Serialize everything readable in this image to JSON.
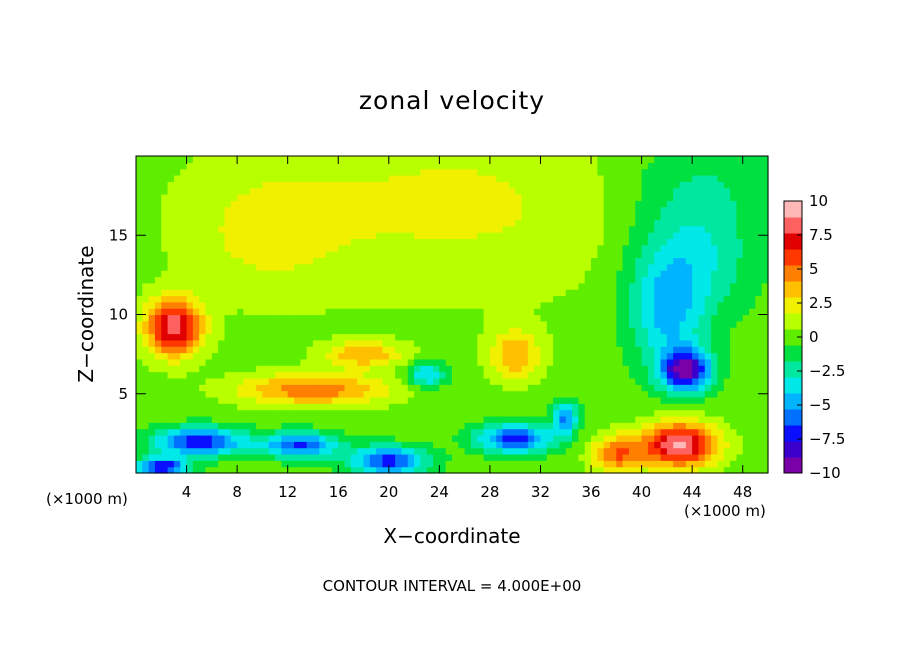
{
  "chart_data": {
    "type": "heatmap",
    "title": "zonal velocity",
    "xlabel": "X−coordinate",
    "ylabel": "Z−coordinate",
    "x_unit_left": "(×1000 m)",
    "x_unit_right": "(×1000 m)",
    "footer": "CONTOUR INTERVAL = 4.000E+00",
    "xlim": [
      0,
      50
    ],
    "ylim": [
      0,
      20
    ],
    "xticks": [
      4,
      8,
      12,
      16,
      20,
      24,
      28,
      32,
      36,
      40,
      44,
      48
    ],
    "xtick_labels": [
      "4",
      "8",
      "12",
      "16",
      "20",
      "24",
      "28",
      "32",
      "36",
      "40",
      "44",
      "48"
    ],
    "yticks": [
      5,
      10,
      15
    ],
    "ytick_labels": [
      "5",
      "10",
      "15"
    ],
    "colorbar": {
      "vmin": -10,
      "vmax": 10,
      "ticks": [
        10,
        7.5,
        5,
        2.5,
        0,
        -2.5,
        -5,
        -7.5,
        -10
      ],
      "tick_labels": [
        "10",
        "7.5",
        "5",
        "2.5",
        "0",
        "−2.5",
        "−5",
        "−7.5",
        "−10"
      ],
      "colors": [
        "#7a00a8",
        "#3c00cc",
        "#0a10ff",
        "#0070ff",
        "#00b4ff",
        "#00e8e8",
        "#00e8a0",
        "#00e040",
        "#60ee00",
        "#b8ff00",
        "#f0f000",
        "#ffc000",
        "#ff8000",
        "#ff3800",
        "#e00000",
        "#ff6060",
        "#ffb8b8"
      ]
    },
    "features": [
      {
        "x": 25,
        "z": 17,
        "sx": 18,
        "sz": 6,
        "value": 2.0
      },
      {
        "x": 10,
        "z": 15,
        "sx": 6,
        "sz": 4,
        "value": 1.5
      },
      {
        "x": 44,
        "z": 14,
        "sx": 5,
        "sz": 4,
        "value": -3.5
      },
      {
        "x": 42,
        "z": 10,
        "sx": 3,
        "sz": 3.5,
        "value": -4.0
      },
      {
        "x": 45,
        "z": 19,
        "sx": 8,
        "sz": 3,
        "value": -1.5
      },
      {
        "x": 3,
        "z": 9.2,
        "sx": 2.2,
        "sz": 1.8,
        "value": 8.5
      },
      {
        "x": 14,
        "z": 5.3,
        "sx": 6,
        "sz": 1.0,
        "value": 5.0
      },
      {
        "x": 18,
        "z": 7.5,
        "sx": 3,
        "sz": 0.8,
        "value": 4.0
      },
      {
        "x": 30,
        "z": 7.5,
        "sx": 2,
        "sz": 1.6,
        "value": 4.0
      },
      {
        "x": 23,
        "z": 6.2,
        "sx": 1.5,
        "sz": 0.8,
        "value": -4.5
      },
      {
        "x": 43.5,
        "z": 6.5,
        "sx": 2.0,
        "sz": 1.3,
        "value": -9.0
      },
      {
        "x": 5,
        "z": 2.0,
        "sx": 3.5,
        "sz": 0.9,
        "value": -7.5
      },
      {
        "x": 13,
        "z": 1.8,
        "sx": 3,
        "sz": 0.8,
        "value": -6.5
      },
      {
        "x": 20,
        "z": 0.8,
        "sx": 3,
        "sz": 0.9,
        "value": -7.0
      },
      {
        "x": 30,
        "z": 2.2,
        "sx": 3,
        "sz": 0.9,
        "value": -7.0
      },
      {
        "x": 2,
        "z": 0.4,
        "sx": 2,
        "sz": 0.6,
        "value": -8.0
      },
      {
        "x": 43,
        "z": 1.8,
        "sx": 3,
        "sz": 1.4,
        "value": 9.0
      },
      {
        "x": 38,
        "z": 1.2,
        "sx": 2,
        "sz": 1.2,
        "value": 5.0
      },
      {
        "x": 34,
        "z": 3.5,
        "sx": 1,
        "sz": 1.0,
        "value": -5.5
      }
    ]
  }
}
